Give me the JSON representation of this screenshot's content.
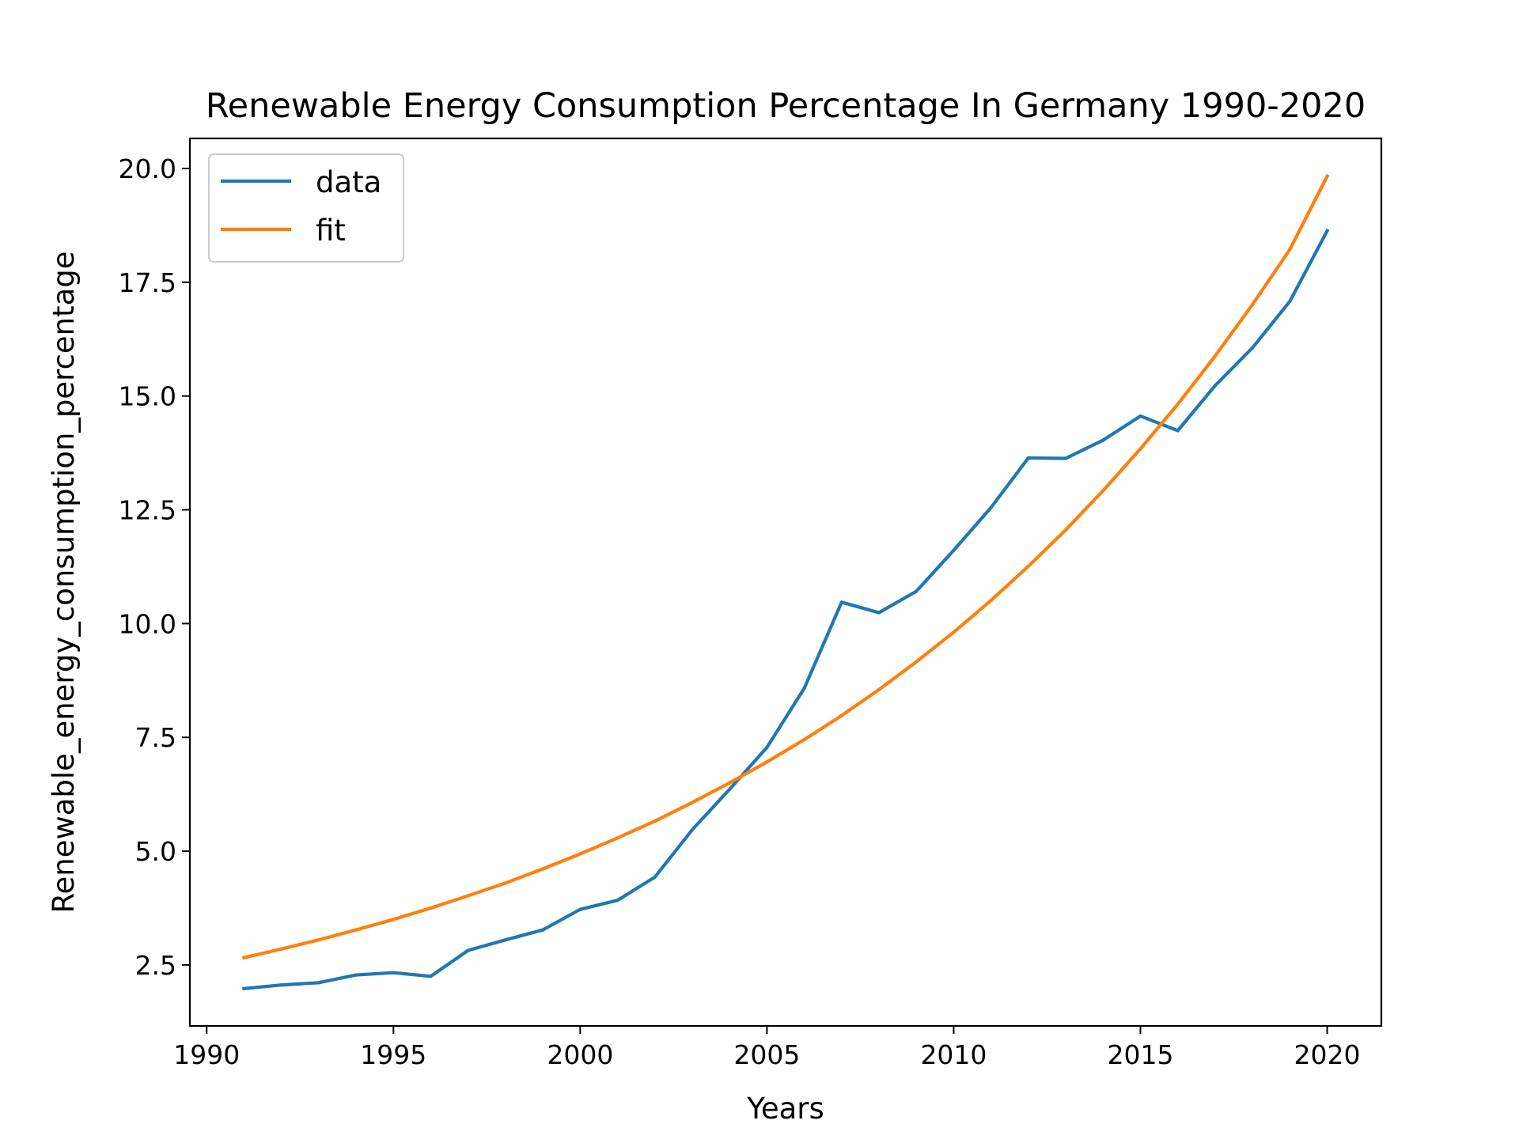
{
  "chart_data": {
    "type": "line",
    "title": "Renewable Energy Consumption Percentage In Germany 1990-2020",
    "xlabel": "Years",
    "ylabel": "Renewable_energy_consumption_percentage",
    "xlim": [
      1989.55,
      2021.45
    ],
    "ylim": [
      1.16,
      20.66
    ],
    "xticks": [
      1990,
      1995,
      2000,
      2005,
      2010,
      2015,
      2020
    ],
    "xtick_labels": [
      "1990",
      "1995",
      "2000",
      "2005",
      "2010",
      "2015",
      "2020"
    ],
    "yticks": [
      2.5,
      5.0,
      7.5,
      10.0,
      12.5,
      15.0,
      17.5,
      20.0
    ],
    "ytick_labels": [
      "2.5",
      "5.0",
      "7.5",
      "10.0",
      "12.5",
      "15.0",
      "17.5",
      "20.0"
    ],
    "grid": false,
    "legend": {
      "position": "upper-left",
      "entries": [
        "data",
        "fit"
      ]
    },
    "series": [
      {
        "name": "data",
        "color": "#1f77b4",
        "x": [
          1991,
          1992,
          1993,
          1994,
          1995,
          1996,
          1997,
          1998,
          1999,
          2000,
          2001,
          2002,
          2003,
          2004,
          2005,
          2006,
          2007,
          2008,
          2009,
          2010,
          2011,
          2012,
          2013,
          2014,
          2015,
          2016,
          2017,
          2018,
          2019,
          2020
        ],
        "y": [
          1.98,
          2.06,
          2.11,
          2.28,
          2.33,
          2.25,
          2.82,
          3.05,
          3.27,
          3.72,
          3.92,
          4.43,
          5.47,
          6.36,
          7.28,
          8.58,
          10.47,
          10.24,
          10.71,
          11.61,
          12.55,
          13.64,
          13.63,
          14.03,
          14.56,
          14.24,
          15.23,
          16.06,
          17.08,
          18.63
        ]
      },
      {
        "name": "fit",
        "color": "#ff7f0e",
        "x": [
          1991,
          1992,
          1993,
          1994,
          1995,
          1996,
          1997,
          1998,
          1999,
          2000,
          2001,
          2002,
          2003,
          2004,
          2005,
          2006,
          2007,
          2008,
          2009,
          2010,
          2011,
          2012,
          2013,
          2014,
          2015,
          2016,
          2017,
          2018,
          2019,
          2020
        ],
        "y": [
          2.66,
          2.85,
          3.05,
          3.27,
          3.5,
          3.75,
          4.02,
          4.3,
          4.61,
          4.94,
          5.29,
          5.66,
          6.07,
          6.5,
          6.96,
          7.45,
          7.98,
          8.55,
          9.16,
          9.81,
          10.51,
          11.26,
          12.06,
          12.92,
          13.84,
          14.82,
          15.88,
          17.01,
          18.22,
          19.83
        ]
      }
    ]
  }
}
